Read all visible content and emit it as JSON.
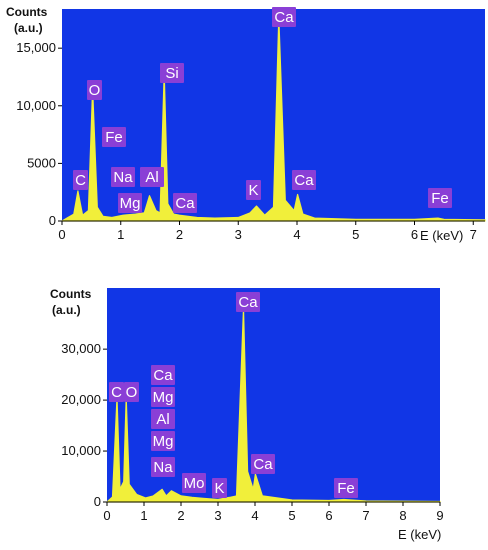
{
  "colors": {
    "plot_bg": "#1136e6",
    "spectrum": "#f1ef3a",
    "label_bg": "#8a3fd6",
    "label_text": "#ffffff",
    "axis_text": "#111111"
  },
  "chart_data": [
    {
      "type": "line",
      "ylabel": "Counts",
      "ylabel_unit": "(a.u.)",
      "xlabel": "E (keV)",
      "xlim": [
        0,
        7.2
      ],
      "ylim": [
        0,
        18400
      ],
      "xticks": [
        0,
        1,
        2,
        3,
        4,
        5,
        6,
        7
      ],
      "yticks": [
        0,
        5000,
        10000,
        15000
      ],
      "ytick_labels": [
        "0",
        "5000",
        "10,000",
        "15,000"
      ],
      "grid": false,
      "series": [
        {
          "x": [
            0.0,
            0.1,
            0.2,
            0.27,
            0.35,
            0.45,
            0.52,
            0.6,
            0.7,
            0.85,
            1.04,
            1.25,
            1.4,
            1.49,
            1.6,
            1.67,
            1.74,
            1.8,
            1.9,
            2.0,
            2.3,
            2.6,
            3.0,
            3.2,
            3.31,
            3.45,
            3.6,
            3.69,
            3.8,
            3.95,
            4.01,
            4.1,
            4.3,
            5.0,
            6.0,
            6.4,
            6.5,
            7.2
          ],
          "y": [
            0,
            300,
            600,
            2600,
            500,
            900,
            11500,
            1200,
            400,
            300,
            500,
            600,
            700,
            2200,
            900,
            700,
            12900,
            1500,
            600,
            500,
            300,
            250,
            300,
            700,
            1300,
            500,
            1200,
            17700,
            1800,
            900,
            2300,
            600,
            250,
            150,
            150,
            250,
            150,
            100
          ]
        }
      ],
      "peaks": [
        {
          "label": "C",
          "x": 0.27,
          "y": 2600
        },
        {
          "label": "O",
          "x": 0.52,
          "y": 11500
        },
        {
          "label": "Fe",
          "x": 0.7,
          "y": 7000
        },
        {
          "label": "Na",
          "x": 1.04,
          "y": 3500
        },
        {
          "label": "Mg",
          "x": 1.25,
          "y": 1500
        },
        {
          "label": "Al",
          "x": 1.49,
          "y": 3500
        },
        {
          "label": "Si",
          "x": 1.74,
          "y": 12900
        },
        {
          "label": "Ca",
          "x": 2.0,
          "y": 1000
        },
        {
          "label": "K",
          "x": 3.31,
          "y": 1500
        },
        {
          "label": "Ca",
          "x": 3.69,
          "y": 17700
        },
        {
          "label": "Ca",
          "x": 4.01,
          "y": 2300
        },
        {
          "label": "Fe",
          "x": 6.4,
          "y": 500
        }
      ]
    },
    {
      "type": "line",
      "ylabel": "Counts",
      "ylabel_unit": "(a.u.)",
      "xlabel": "E (keV)",
      "xlim": [
        0,
        9
      ],
      "ylim": [
        0,
        42000
      ],
      "xticks": [
        0,
        1,
        2,
        3,
        4,
        5,
        6,
        7,
        8,
        9
      ],
      "yticks": [
        0,
        10000,
        20000,
        30000
      ],
      "ytick_labels": [
        "0",
        "10,000",
        "20,000",
        "30,000"
      ],
      "grid": false,
      "series": [
        {
          "x": [
            0.0,
            0.15,
            0.27,
            0.35,
            0.45,
            0.52,
            0.6,
            0.8,
            1.04,
            1.25,
            1.49,
            1.6,
            1.74,
            2.0,
            2.3,
            2.6,
            3.0,
            3.31,
            3.5,
            3.69,
            3.8,
            3.95,
            4.01,
            4.2,
            5.0,
            6.0,
            6.4,
            7.0,
            8.0,
            9.0
          ],
          "y": [
            0,
            1000,
            20500,
            2500,
            4000,
            20500,
            3500,
            1500,
            800,
            1200,
            2500,
            1200,
            2200,
            1200,
            900,
            700,
            500,
            900,
            1200,
            38000,
            6000,
            2500,
            5500,
            1200,
            400,
            300,
            500,
            200,
            150,
            100
          ]
        }
      ],
      "peaks": [
        {
          "label": "C",
          "x": 0.27,
          "y": 20500
        },
        {
          "label": "O",
          "x": 0.52,
          "y": 20500
        },
        {
          "label": "Ca",
          "x": 1.0,
          "y": 26000
        },
        {
          "label": "Mg",
          "x": 1.25,
          "y": 20000
        },
        {
          "label": "Al",
          "x": 1.49,
          "y": 15000
        },
        {
          "label": "Mg",
          "x": 1.25,
          "y": 10000
        },
        {
          "label": "Na",
          "x": 1.04,
          "y": 5000
        },
        {
          "label": "Mo",
          "x": 2.29,
          "y": 2000
        },
        {
          "label": "K",
          "x": 3.31,
          "y": 1000
        },
        {
          "label": "Ca",
          "x": 3.69,
          "y": 38000
        },
        {
          "label": "Ca",
          "x": 4.01,
          "y": 5500
        },
        {
          "label": "Fe",
          "x": 6.4,
          "y": 500
        }
      ]
    }
  ]
}
